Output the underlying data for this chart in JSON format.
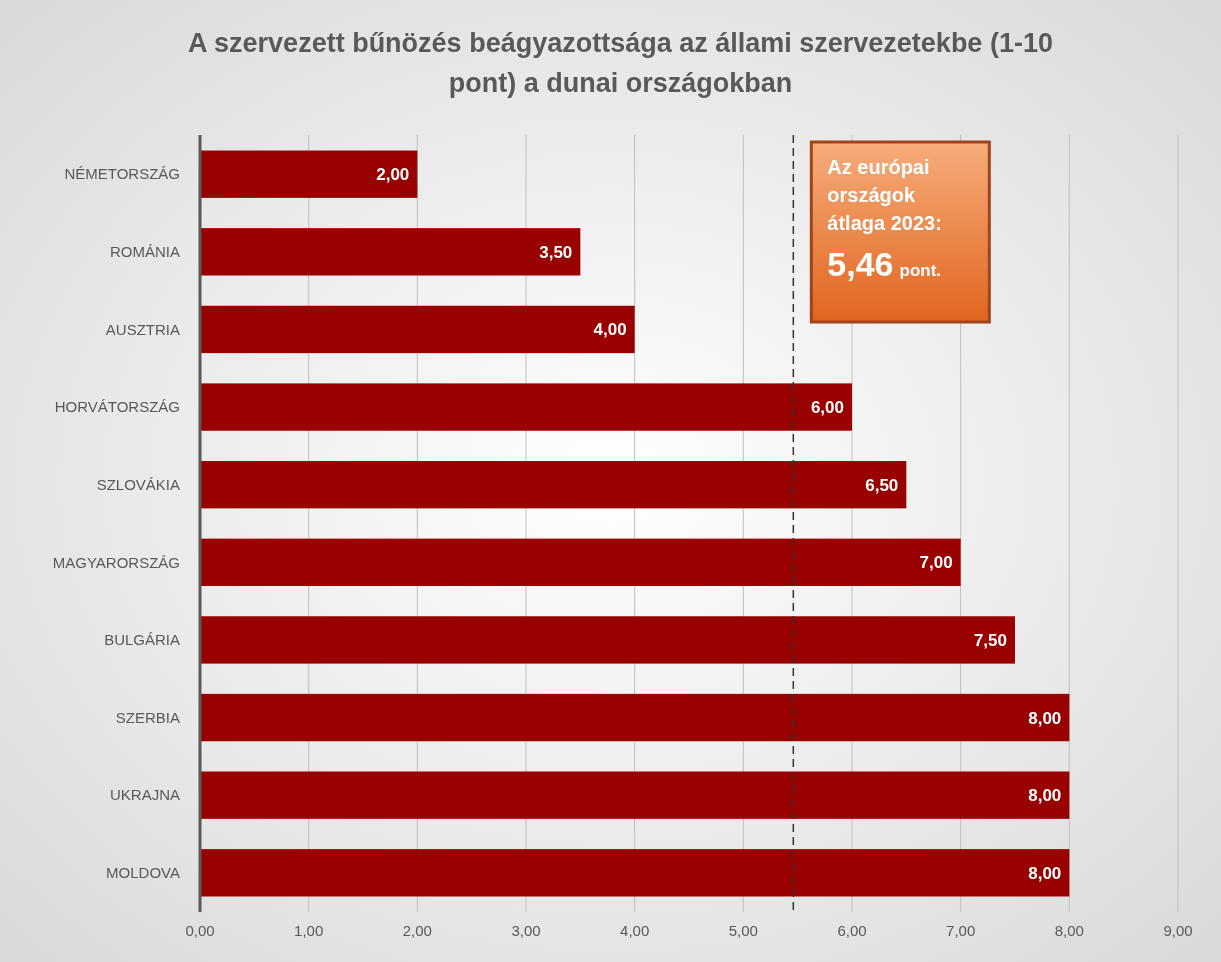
{
  "chart_data": {
    "type": "bar",
    "orientation": "horizontal",
    "title": "A szervezett bűnözés beágyazottsága az állami szervezetekbe (1-10 pont) a dunai országokban",
    "categories": [
      "NÉMETORSZÁG",
      "ROMÁNIA",
      "AUSZTRIA",
      "HORVÁTORSZÁG",
      "SZLOVÁKIA",
      "MAGYARORSZÁG",
      "BULGÁRIA",
      "SZERBIA",
      "UKRAJNA",
      "MOLDOVA"
    ],
    "values": [
      2,
      3.5,
      4,
      6,
      6.5,
      7,
      7.5,
      8,
      8,
      8
    ],
    "value_labels": [
      "2,00",
      "3,50",
      "4,00",
      "6,00",
      "6,50",
      "7,00",
      "7,50",
      "8,00",
      "8,00",
      "8,00"
    ],
    "color": "#990000",
    "xlim": [
      0,
      9
    ],
    "xticks": [
      {
        "value": 0,
        "label": "0,00"
      },
      {
        "value": 1,
        "label": "1,00"
      },
      {
        "value": 2,
        "label": "2,00"
      },
      {
        "value": 3,
        "label": "3,00"
      },
      {
        "value": 4,
        "label": "4,00"
      },
      {
        "value": 5,
        "label": "5,00"
      },
      {
        "value": 6,
        "label": "6,00"
      },
      {
        "value": 7,
        "label": "7,00"
      },
      {
        "value": 8,
        "label": "8,00"
      },
      {
        "value": 9,
        "label": "9,00"
      }
    ],
    "grid": "x",
    "ref_lines": [
      {
        "axis": "x",
        "value": 5.46,
        "label": "Az európai országok átlaga 2023: 5,46 pont.",
        "color": "#333333",
        "line_style": "dashed"
      }
    ]
  }
}
